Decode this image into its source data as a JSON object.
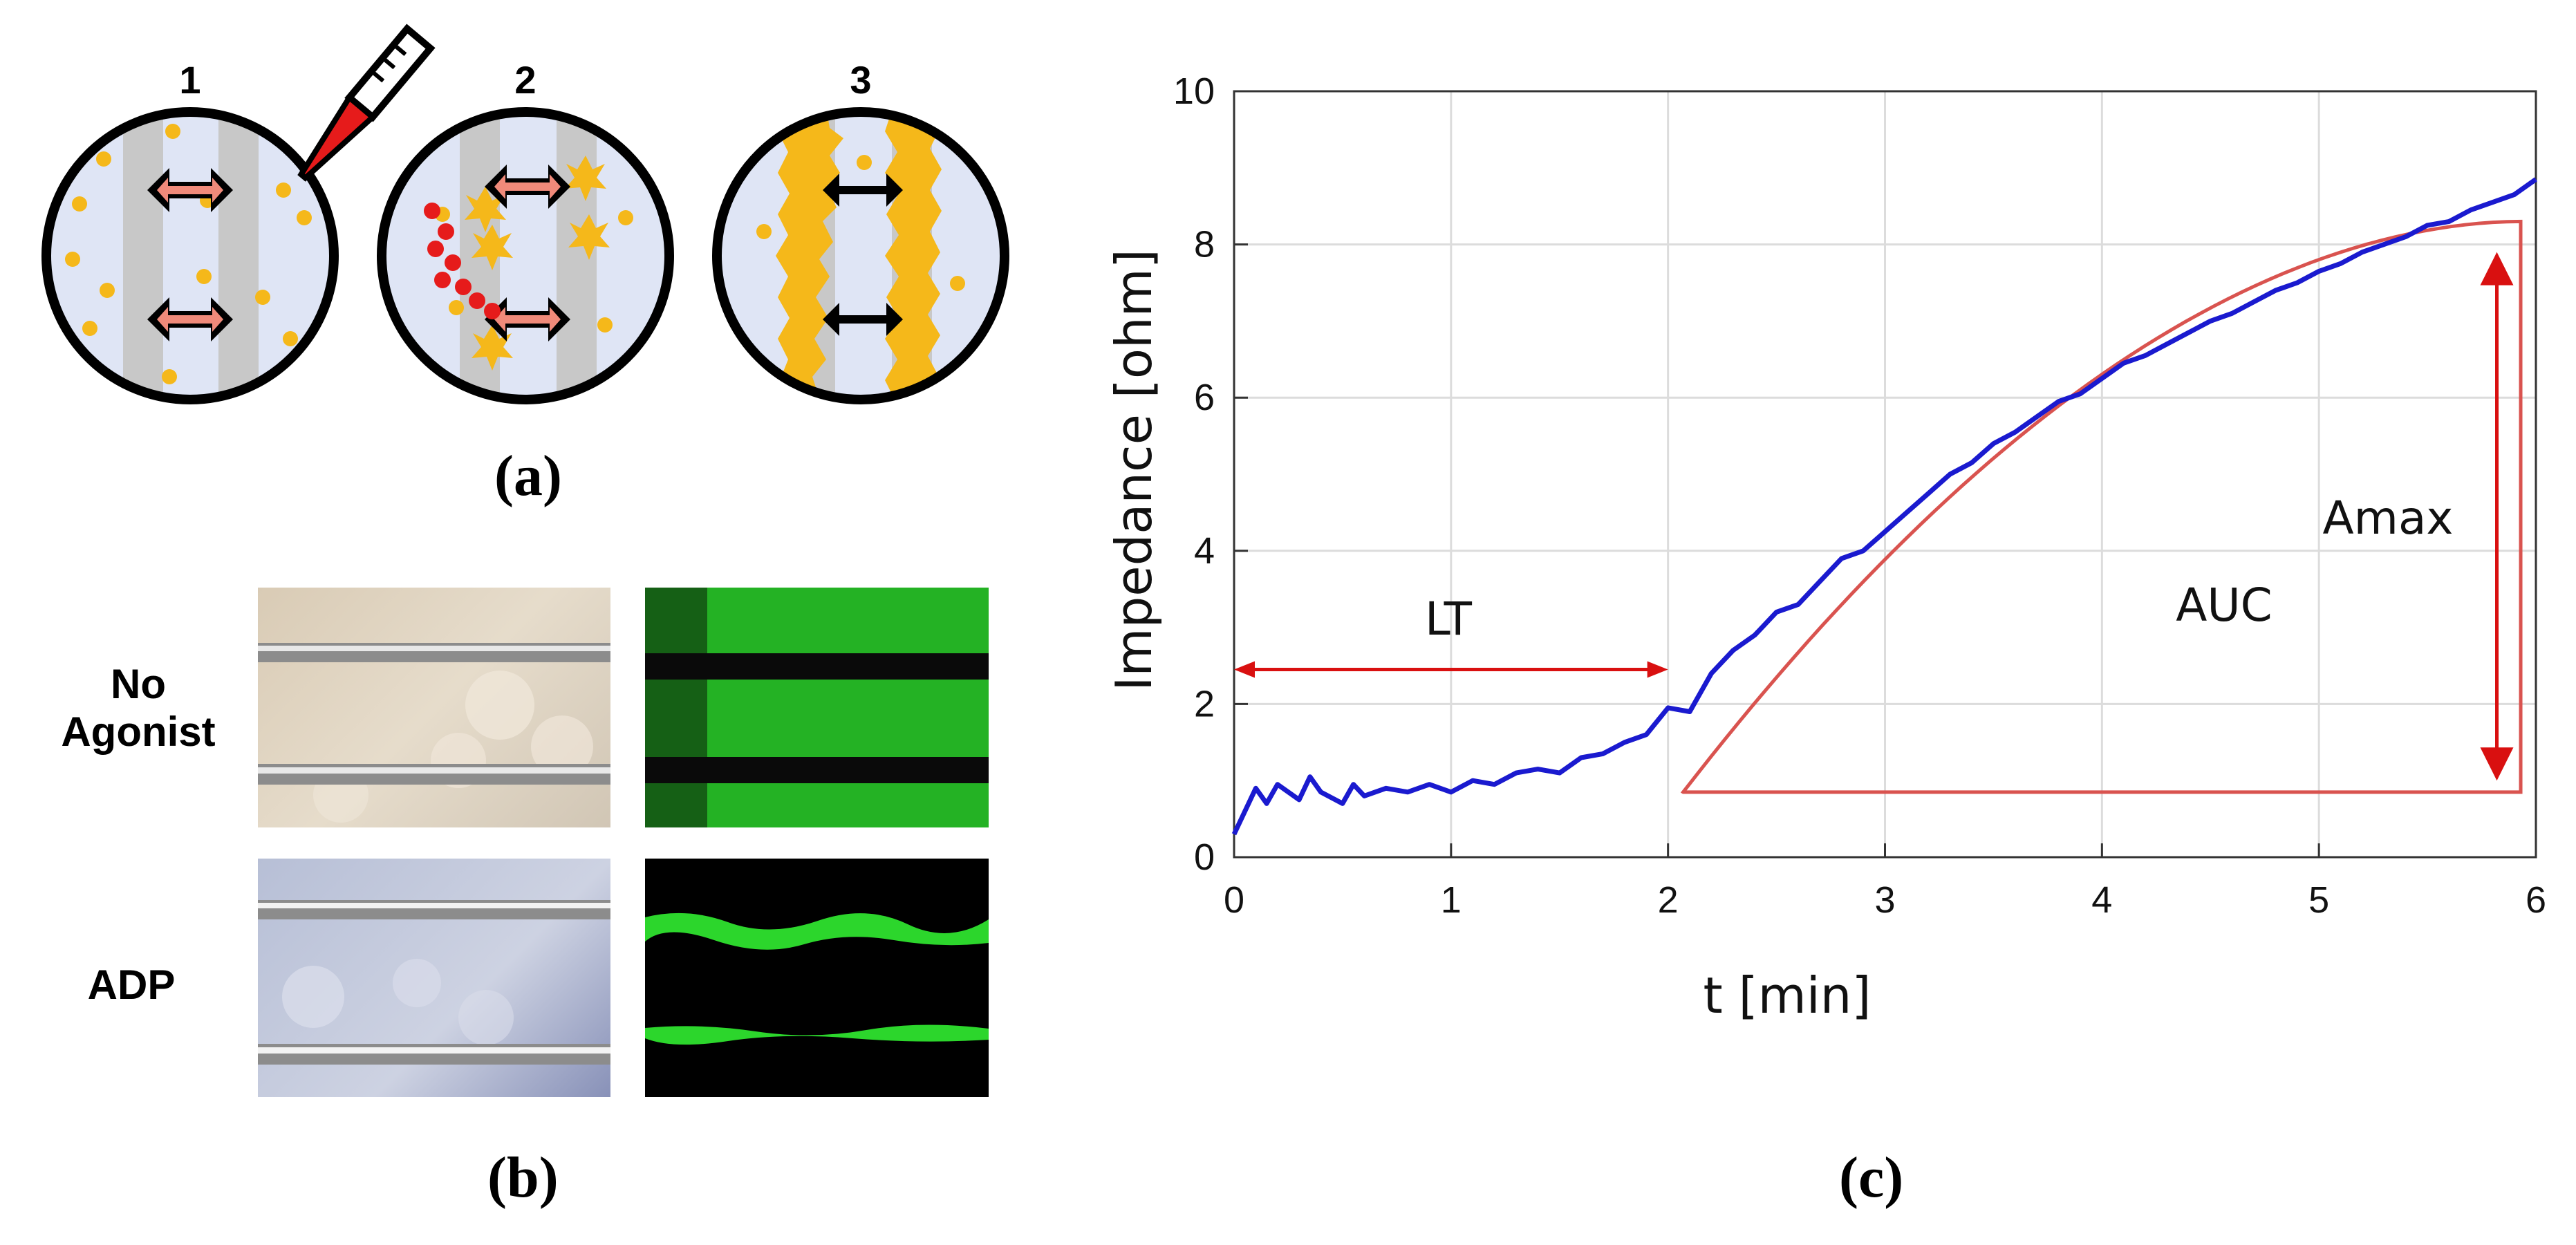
{
  "panel_a": {
    "caption": "(a)",
    "wells": [
      {
        "label": "1"
      },
      {
        "label": "2"
      },
      {
        "label": "3"
      }
    ]
  },
  "panel_b": {
    "caption": "(b)",
    "rows": [
      {
        "label_line1": "No",
        "label_line2": "Agonist"
      },
      {
        "label_line1": "ADP",
        "label_line2": ""
      }
    ]
  },
  "panel_c": {
    "caption": "(c)",
    "annotations": {
      "lt": "LT",
      "auc": "AUC",
      "amax": "Amax"
    }
  },
  "colors": {
    "curve": "#1a1acf",
    "fit": "#d9534f",
    "arrow": "#d91010",
    "platelet": "#f5b81a",
    "well_fill": "#dfe5f5",
    "electrode": "#c8c8c8",
    "double_arrow": "#f08a7a"
  },
  "chart_data": {
    "type": "line",
    "title": "",
    "xlabel": "t [min]",
    "ylabel": "Impedance [ohm]",
    "xlim": [
      0,
      6
    ],
    "ylim": [
      0,
      10
    ],
    "xticks": [
      0,
      1,
      2,
      3,
      4,
      5,
      6
    ],
    "yticks": [
      0,
      2,
      4,
      6,
      8,
      10
    ],
    "grid": true,
    "series": [
      {
        "values_note": "",
        "x": [
          0,
          0.1,
          0.15,
          0.2,
          0.3,
          0.35,
          0.4,
          0.5,
          0.55,
          0.6,
          0.7,
          0.8,
          0.9,
          1.0,
          1.1,
          1.2,
          1.3,
          1.4,
          1.5,
          1.6,
          1.7,
          1.8,
          1.9,
          2.0,
          2.1,
          2.2,
          2.3,
          2.4,
          2.5,
          2.6,
          2.7,
          2.8,
          2.9,
          3.0,
          3.1,
          3.2,
          3.3,
          3.4,
          3.5,
          3.6,
          3.7,
          3.8,
          3.9,
          4.0,
          4.1,
          4.2,
          4.3,
          4.4,
          4.5,
          4.6,
          4.7,
          4.8,
          4.9,
          5.0,
          5.1,
          5.2,
          5.3,
          5.4,
          5.5,
          5.6,
          5.7,
          5.8,
          5.9,
          6.0
        ],
        "y": [
          0.3,
          0.9,
          0.7,
          0.95,
          0.75,
          1.05,
          0.85,
          0.7,
          0.95,
          0.8,
          0.9,
          0.85,
          0.95,
          0.85,
          1.0,
          0.95,
          1.1,
          1.15,
          1.1,
          1.3,
          1.35,
          1.5,
          1.6,
          1.95,
          1.9,
          2.4,
          2.7,
          2.9,
          3.2,
          3.3,
          3.6,
          3.9,
          4.0,
          4.25,
          4.5,
          4.75,
          5.0,
          5.15,
          5.4,
          5.55,
          5.75,
          5.95,
          6.05,
          6.25,
          6.45,
          6.55,
          6.7,
          6.85,
          7.0,
          7.1,
          7.25,
          7.4,
          7.5,
          7.65,
          7.75,
          7.9,
          8.0,
          8.1,
          8.25,
          8.3,
          8.45,
          8.55,
          8.65,
          8.85
        ]
      }
    ],
    "fit_curve": {
      "x_start": 2.07,
      "x_end": 5.93,
      "baseline": 0.85,
      "top": 8.3
    },
    "lt_arrow": {
      "x_start": 0,
      "x_end": 2.0,
      "y": 2.45
    },
    "amax_arrow": {
      "x": 5.82,
      "y_start": 1.0,
      "y_end": 7.9
    }
  }
}
